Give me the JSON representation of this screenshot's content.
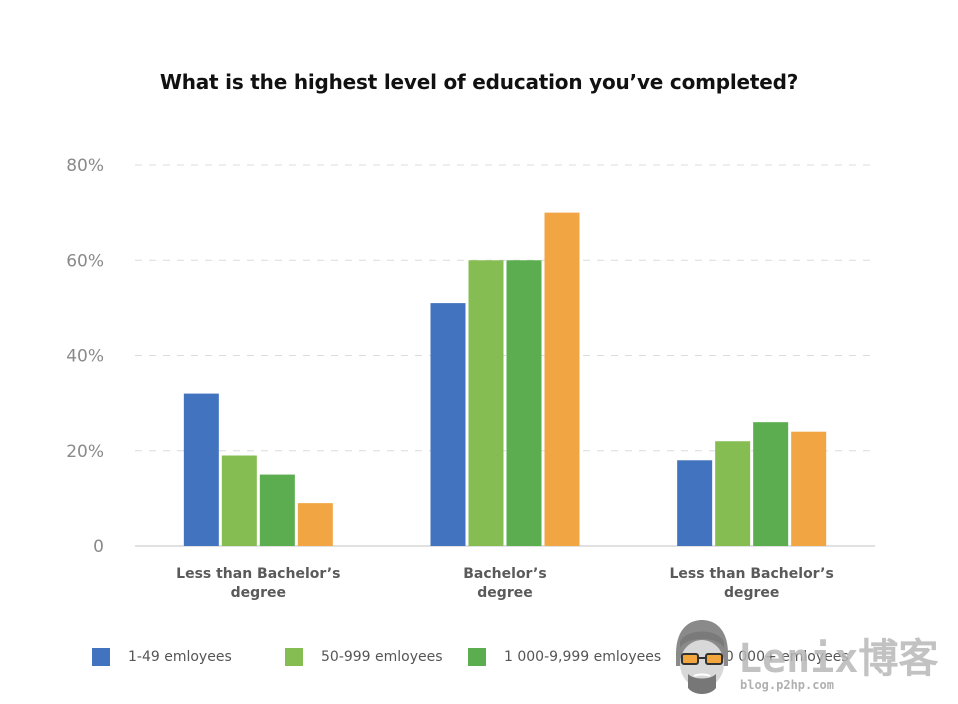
{
  "chart_data": {
    "type": "bar",
    "title": "What is the highest level of education you’ve completed?",
    "categories": [
      [
        "Less than Bachelor’s",
        "degree"
      ],
      [
        "Bachelor’s",
        "degree"
      ],
      [
        "Less than Bachelor’s",
        "degree"
      ]
    ],
    "series": [
      {
        "name": "1-49 emloyees",
        "color": "#4273bf",
        "values": [
          32,
          51,
          18
        ]
      },
      {
        "name": "50-999 emloyees",
        "color": "#86bd53",
        "values": [
          19,
          60,
          22
        ]
      },
      {
        "name": "1 000-9,999 emloyees",
        "color": "#5bad50",
        "values": [
          15,
          60,
          26
        ]
      },
      {
        "name": "10 000+ emloyees",
        "color": "#f2a543",
        "values": [
          9,
          70,
          24
        ]
      }
    ],
    "yticks": [
      "0",
      "20%",
      "40%",
      "60%",
      "80%"
    ],
    "ytick_values": [
      0,
      20,
      40,
      60,
      80
    ],
    "ylim": [
      0,
      80
    ],
    "grid": true,
    "legend_position": "bottom"
  },
  "watermark": {
    "logo_text": "Lenix博客",
    "url": "blog.p2hp.com"
  }
}
